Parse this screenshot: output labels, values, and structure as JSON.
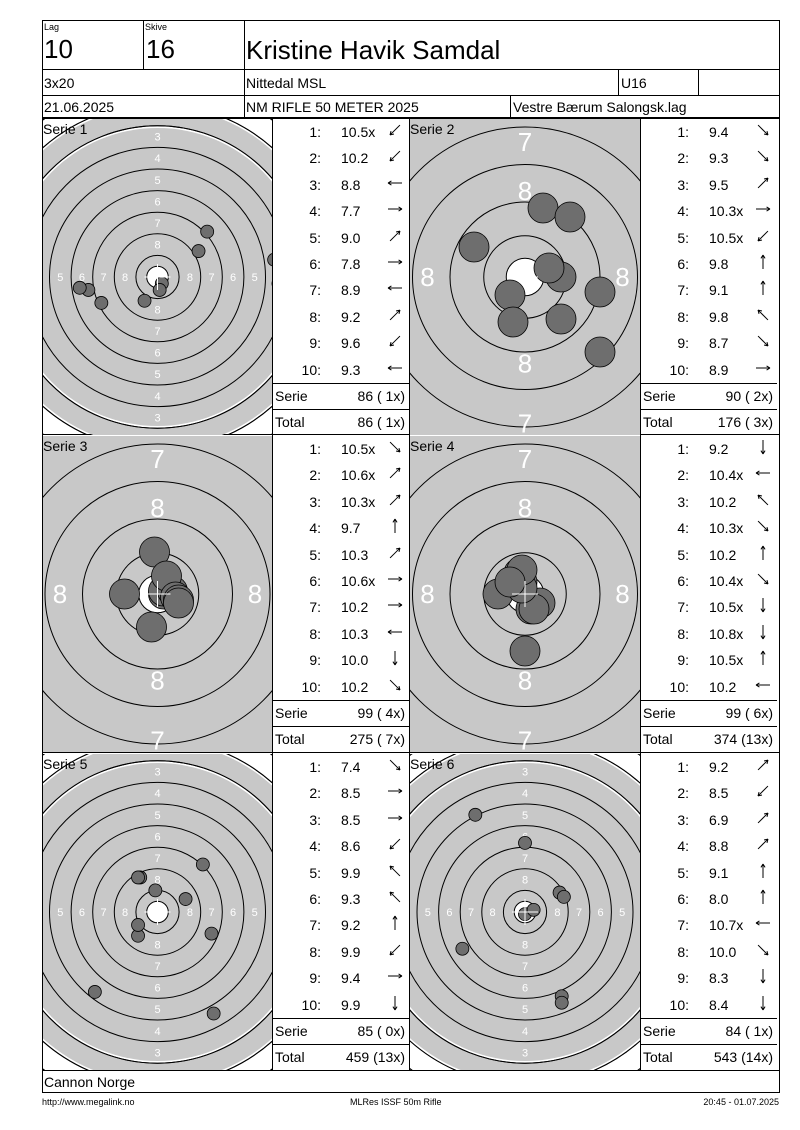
{
  "header": {
    "lag_label": "Lag",
    "lag": "10",
    "skive_label": "Skive",
    "skive": "16",
    "name": "Kristine Havik Samdal",
    "program": "3x20",
    "club": "Nittedal MSL",
    "klasse": "U16",
    "date": "21.06.2025",
    "event": "NM RIFLE 50 METER 2025",
    "organizer": "Vestre Bærum Salongsk.lag"
  },
  "series": [
    {
      "label": "Serie 1",
      "zoom": "full",
      "shots": [
        {
          "n": "1:",
          "v": "10.5x",
          "dir": "sw",
          "x": 0.2,
          "y": 0.3
        },
        {
          "n": "2:",
          "v": "10.2",
          "dir": "sw",
          "x": 0.1,
          "y": 0.6
        },
        {
          "n": "3:",
          "v": "8.8",
          "dir": "w",
          "x": -3.2,
          "y": 0.6
        },
        {
          "n": "4:",
          "v": "7.7",
          "dir": "e",
          "x": 5.4,
          "y": -0.8
        },
        {
          "n": "5:",
          "v": "9.0",
          "dir": "ne",
          "x": 2.3,
          "y": -2.1
        },
        {
          "n": "6:",
          "v": "7.8",
          "dir": "e",
          "x": 5.6,
          "y": 0.3
        },
        {
          "n": "7:",
          "v": "8.9",
          "dir": "w",
          "x": -2.6,
          "y": 1.2
        },
        {
          "n": "8:",
          "v": "9.2",
          "dir": "ne",
          "x": 1.9,
          "y": -1.2
        },
        {
          "n": "9:",
          "v": "9.6",
          "dir": "sw",
          "x": -0.6,
          "y": 1.1
        },
        {
          "n": "10:",
          "v": "9.3",
          "dir": "w",
          "x": -3.6,
          "y": 0.5
        }
      ],
      "serie_label": "Serie",
      "serie_total": "86 ( 1x)",
      "total_label": "Total",
      "total": "86 ( 1x)"
    },
    {
      "label": "Serie 2",
      "zoom": "close",
      "shots": [
        {
          "n": "1:",
          "v": "9.4",
          "dir": "se",
          "x": 1.2,
          "y": 0.0
        },
        {
          "n": "2:",
          "v": "9.3",
          "dir": "se",
          "x": 2.5,
          "y": 2.5
        },
        {
          "n": "3:",
          "v": "9.5",
          "dir": "ne",
          "x": 0.6,
          "y": -2.3
        },
        {
          "n": "4:",
          "v": "10.3x",
          "dir": "e",
          "x": 0.8,
          "y": -0.3
        },
        {
          "n": "5:",
          "v": "10.5x",
          "dir": "sw",
          "x": -0.5,
          "y": 0.6
        },
        {
          "n": "6:",
          "v": "9.8",
          "dir": "n",
          "x": -0.4,
          "y": 1.5
        },
        {
          "n": "7:",
          "v": "9.1",
          "dir": "n",
          "x": 1.5,
          "y": -2.0
        },
        {
          "n": "8:",
          "v": "9.8",
          "dir": "nw",
          "x": 1.2,
          "y": 1.4
        },
        {
          "n": "9:",
          "v": "8.7",
          "dir": "se",
          "x": -1.7,
          "y": -1.0
        },
        {
          "n": "10:",
          "v": "8.9",
          "dir": "e",
          "x": 2.5,
          "y": 0.5
        }
      ],
      "serie_label": "Serie",
      "serie_total": "90 ( 2x)",
      "total_label": "Total",
      "total": "176 ( 3x)"
    },
    {
      "label": "Serie 3",
      "zoom": "close",
      "shots": [
        {
          "n": "1:",
          "v": "10.5x",
          "dir": "se",
          "x": 0.2,
          "y": 0.0
        },
        {
          "n": "2:",
          "v": "10.6x",
          "dir": "ne",
          "x": 0.2,
          "y": -0.1
        },
        {
          "n": "3:",
          "v": "10.3x",
          "dir": "ne",
          "x": 0.5,
          "y": -0.1
        },
        {
          "n": "4:",
          "v": "9.7",
          "dir": "n",
          "x": -0.1,
          "y": -1.4
        },
        {
          "n": "5:",
          "v": "10.3",
          "dir": "ne",
          "x": 0.3,
          "y": -0.6
        },
        {
          "n": "6:",
          "v": "10.6x",
          "dir": "e",
          "x": 0.6,
          "y": 0.1
        },
        {
          "n": "7:",
          "v": "10.2",
          "dir": "e",
          "x": 0.7,
          "y": 0.2
        },
        {
          "n": "8:",
          "v": "10.3",
          "dir": "w",
          "x": -1.1,
          "y": 0.0
        },
        {
          "n": "9:",
          "v": "10.0",
          "dir": "s",
          "x": -0.2,
          "y": 1.1
        },
        {
          "n": "10:",
          "v": "10.2",
          "dir": "se",
          "x": 0.7,
          "y": 0.3
        }
      ],
      "serie_label": "Serie",
      "serie_total": "99 ( 4x)",
      "total_label": "Total",
      "total": "275 ( 7x)"
    },
    {
      "label": "Serie 4",
      "zoom": "close",
      "shots": [
        {
          "n": "1:",
          "v": "9.2",
          "dir": "s",
          "x": 0.0,
          "y": 1.9
        },
        {
          "n": "2:",
          "v": "10.4x",
          "dir": "w",
          "x": -0.9,
          "y": 0.0
        },
        {
          "n": "3:",
          "v": "10.2",
          "dir": "nw",
          "x": -0.1,
          "y": -0.4
        },
        {
          "n": "4:",
          "v": "10.3x",
          "dir": "se",
          "x": 0.2,
          "y": 0.5
        },
        {
          "n": "5:",
          "v": "10.2",
          "dir": "n",
          "x": -0.2,
          "y": -0.7
        },
        {
          "n": "6:",
          "v": "10.4x",
          "dir": "se",
          "x": 0.5,
          "y": 0.3
        },
        {
          "n": "7:",
          "v": "10.5x",
          "dir": "s",
          "x": 0.3,
          "y": 0.5
        },
        {
          "n": "8:",
          "v": "10.8x",
          "dir": "s",
          "x": -0.1,
          "y": -0.2
        },
        {
          "n": "9:",
          "v": "10.5x",
          "dir": "n",
          "x": -0.1,
          "y": -0.8
        },
        {
          "n": "10:",
          "v": "10.2",
          "dir": "w",
          "x": -0.5,
          "y": -0.4
        }
      ],
      "serie_label": "Serie",
      "serie_total": "99 ( 6x)",
      "total_label": "Total",
      "total": "374 (13x)"
    },
    {
      "label": "Serie 5",
      "zoom": "full",
      "shots": [
        {
          "n": "1:",
          "v": "7.4",
          "dir": "se",
          "x": 2.6,
          "y": 4.7
        },
        {
          "n": "2:",
          "v": "8.5",
          "dir": "e",
          "x": 2.1,
          "y": -2.2
        },
        {
          "n": "3:",
          "v": "8.5",
          "dir": "e",
          "x": 2.5,
          "y": 1.0
        },
        {
          "n": "4:",
          "v": "8.6",
          "dir": "sw",
          "x": -2.9,
          "y": 3.7
        },
        {
          "n": "5:",
          "v": "9.9",
          "dir": "nw",
          "x": -0.8,
          "y": -1.6
        },
        {
          "n": "6:",
          "v": "9.3",
          "dir": "nw",
          "x": -0.9,
          "y": -1.6
        },
        {
          "n": "7:",
          "v": "9.2",
          "dir": "n",
          "x": -0.1,
          "y": -1.0
        },
        {
          "n": "8:",
          "v": "9.9",
          "dir": "sw",
          "x": -0.9,
          "y": 1.1
        },
        {
          "n": "9:",
          "v": "9.4",
          "dir": "e",
          "x": 1.3,
          "y": -0.6
        },
        {
          "n": "10:",
          "v": "9.9",
          "dir": "s",
          "x": -0.9,
          "y": 0.6
        }
      ],
      "serie_label": "Serie",
      "serie_total": "85 ( 0x)",
      "total_label": "Total",
      "total": "459 (13x)"
    },
    {
      "label": "Serie 6",
      "zoom": "full",
      "shots": [
        {
          "n": "1:",
          "v": "9.2",
          "dir": "ne",
          "x": 1.6,
          "y": -0.9
        },
        {
          "n": "2:",
          "v": "8.5",
          "dir": "sw",
          "x": -2.9,
          "y": 1.7
        },
        {
          "n": "3:",
          "v": "6.9",
          "dir": "ne",
          "x": -6.2,
          "y": -2.3
        },
        {
          "n": "4:",
          "v": "8.8",
          "dir": "ne",
          "x": 1.8,
          "y": -0.7
        },
        {
          "n": "5:",
          "v": "9.1",
          "dir": "n",
          "x": 0.0,
          "y": -3.2
        },
        {
          "n": "6:",
          "v": "8.0",
          "dir": "n",
          "x": 1.7,
          "y": 3.9
        },
        {
          "n": "7:",
          "v": "10.7x",
          "dir": "w",
          "x": 0.0,
          "y": 0.1
        },
        {
          "n": "8:",
          "v": "10.0",
          "dir": "se",
          "x": 0.4,
          "y": -0.1
        },
        {
          "n": "9:",
          "v": "8.3",
          "dir": "s",
          "x": -2.3,
          "y": -4.5
        },
        {
          "n": "10:",
          "v": "8.4",
          "dir": "s",
          "x": 1.7,
          "y": 4.2
        }
      ],
      "serie_label": "Serie",
      "serie_total": "84 ( 1x)",
      "total_label": "Total",
      "total": "543 (14x)"
    }
  ],
  "footer": {
    "sponsor": "Cannon Norge",
    "url": "http://www.megalink.no",
    "software": "MLRes ISSF 50m Rifle",
    "printed": "20:45 - 01.07.2025"
  }
}
